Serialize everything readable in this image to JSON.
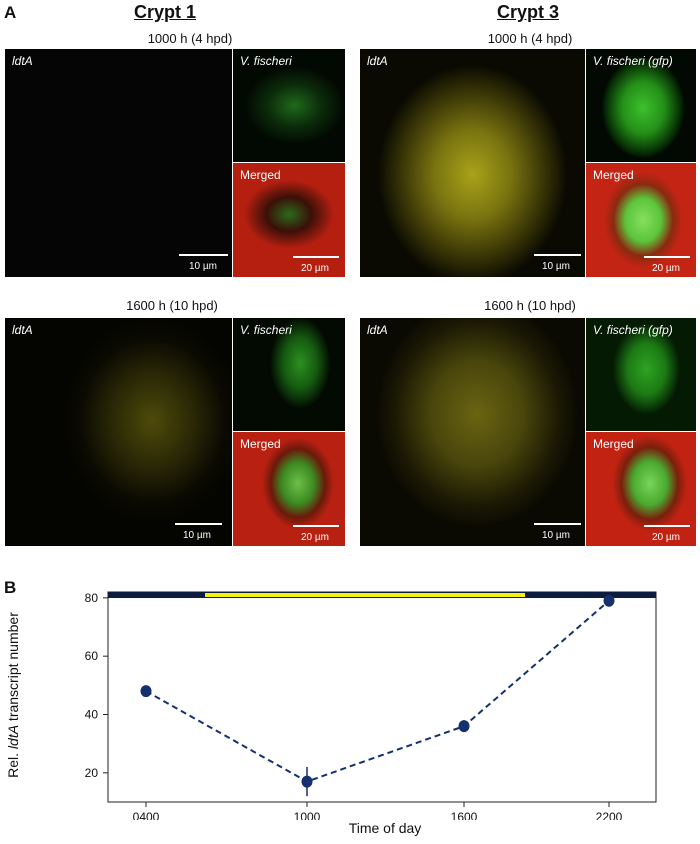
{
  "panelA": {
    "letter": "A",
    "crypt1": {
      "title": "Crypt 1",
      "row1_time": "1000 h (4 hpd)",
      "row2_time": "1600 h (10 hpd)",
      "main_label": "ldtA",
      "green_label": "V. fischeri",
      "merged_label": "Merged",
      "scale_main": "10 µm",
      "scale_merged": "20 µm"
    },
    "crypt3": {
      "title": "Crypt 3",
      "row1_time": "1000 h (4 hpd)",
      "row2_time": "1600 h (10 hpd)",
      "main_label": "ldtA",
      "green_label": "V. fischeri (gfp)",
      "merged_label": "Merged",
      "scale_main": "10 µm",
      "scale_merged": "20 µm"
    }
  },
  "panelB": {
    "letter": "B",
    "ylabel_pre": "Rel. ",
    "ylabel_ital": "ldtA",
    "ylabel_post": " transcript number",
    "xlabel": "Time of day"
  },
  "chart_data": {
    "type": "line",
    "categories": [
      "0400",
      "1000",
      "1600",
      "2200"
    ],
    "values": [
      48,
      17,
      36,
      79
    ],
    "errors": [
      1.5,
      5,
      2,
      1.5
    ],
    "yticks": [
      20,
      40,
      60,
      80
    ],
    "ylim": [
      10,
      82
    ],
    "xlabel": "Time of day",
    "ylabel": "Rel. ldtA transcript number",
    "grid": false,
    "light_dark_bar": "dark - light (yellow) - dark",
    "colors": {
      "series": "#14306e",
      "light": "#f5f20a",
      "dark": "#0c1c3e"
    }
  }
}
